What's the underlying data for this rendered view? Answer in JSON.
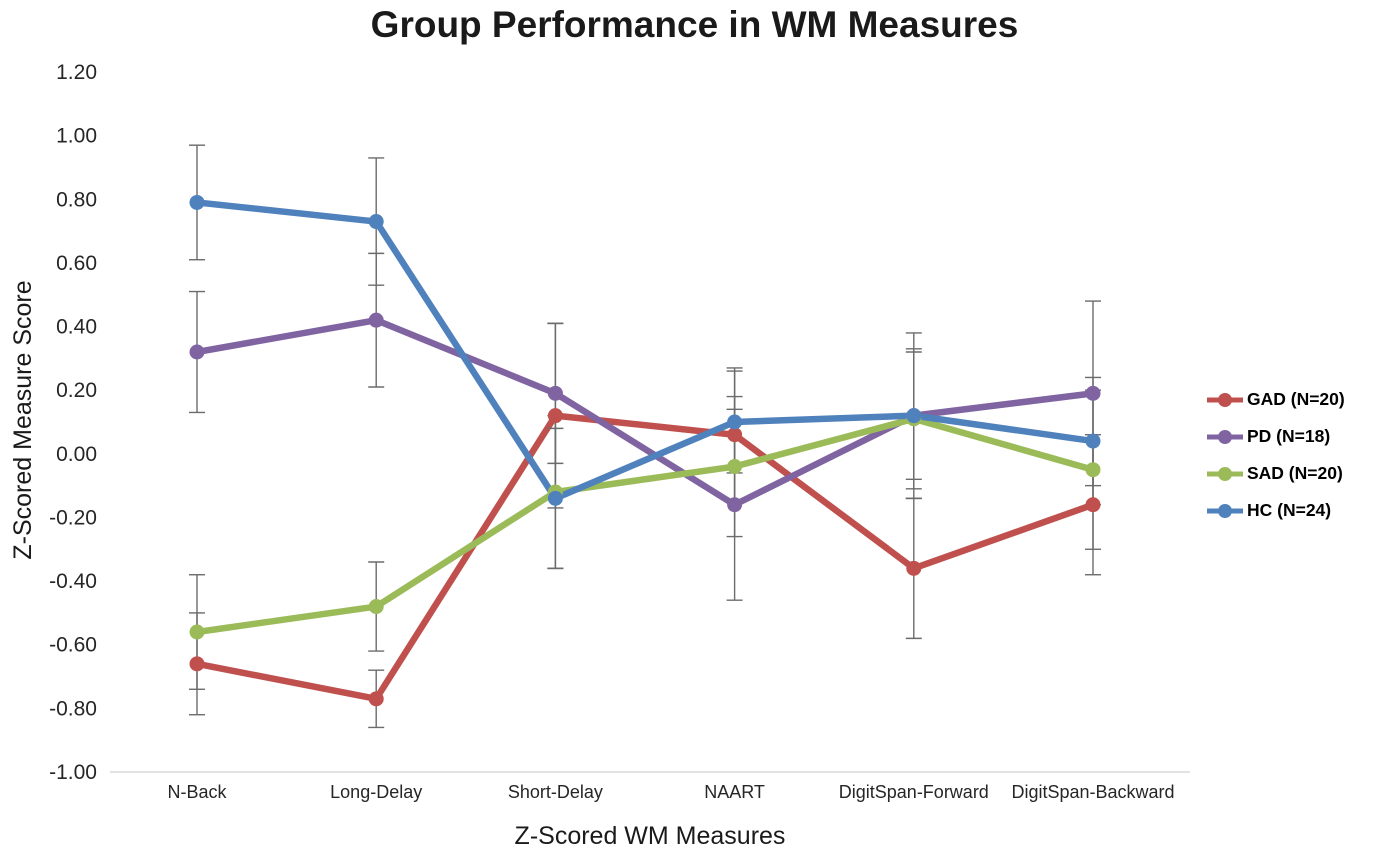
{
  "title": "Group Performance in WM Measures",
  "chart_data": {
    "type": "line",
    "title": "Group Performance in WM Measures",
    "xlabel": "Z-Scored WM Measures",
    "ylabel": "Z-Scored Measure Score",
    "categories": [
      "N-Back",
      "Long-Delay",
      "Short-Delay",
      "NAART",
      "DigitSpan-Forward",
      "DigitSpan-Backward"
    ],
    "ylim": [
      -1.0,
      1.2
    ],
    "yticks": [
      1.2,
      1.0,
      0.8,
      0.6,
      0.4,
      0.2,
      0.0,
      -0.2,
      -0.4,
      -0.6,
      -0.8,
      -1.0
    ],
    "ytick_labels": [
      "1.20",
      "1.00",
      "0.80",
      "0.60",
      "0.40",
      "0.20",
      "0.00",
      "-0.20",
      "-0.40",
      "-0.60",
      "-0.80",
      "-1.00"
    ],
    "grid": false,
    "legend_position": "right",
    "error_bars": true,
    "error_bar_color": "#6b6b6b",
    "axis_line_color": "#d9d9d9",
    "series": [
      {
        "id": "gad",
        "name": "GAD (N=20)",
        "color": "#C0504D",
        "values": [
          -0.66,
          -0.77,
          0.12,
          0.06,
          -0.36,
          -0.16
        ],
        "errors": [
          0.16,
          0.09,
          0.29,
          0.21,
          0.22,
          0.22
        ]
      },
      {
        "id": "pd",
        "name": "PD (N=18)",
        "color": "#8064A2",
        "values": [
          0.32,
          0.42,
          0.19,
          -0.16,
          0.12,
          0.19
        ],
        "errors": [
          0.19,
          0.21,
          0.22,
          0.3,
          0.26,
          0.29
        ]
      },
      {
        "id": "sad",
        "name": "SAD (N=20)",
        "color": "#9BBB59",
        "values": [
          -0.56,
          -0.48,
          -0.12,
          -0.04,
          0.11,
          -0.05
        ],
        "errors": [
          0.18,
          0.14,
          0.24,
          0.22,
          0.22,
          0.25
        ]
      },
      {
        "id": "hc",
        "name": "HC (N=24)",
        "color": "#4F81BD",
        "values": [
          0.79,
          0.73,
          -0.14,
          0.1,
          0.12,
          0.04
        ],
        "errors": [
          0.18,
          0.2,
          0.22,
          0.16,
          0.2,
          0.2
        ]
      }
    ]
  }
}
